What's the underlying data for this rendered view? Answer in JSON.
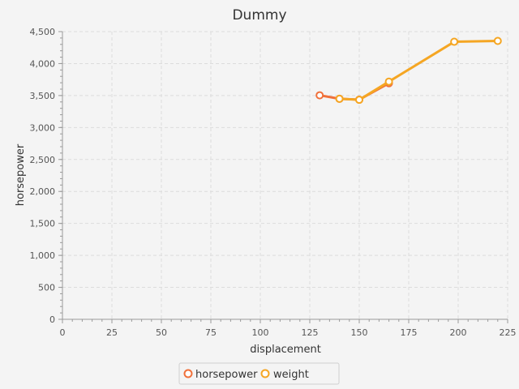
{
  "chart_data": {
    "type": "line",
    "title": "Dummy",
    "xlabel": "displacement",
    "ylabel": "horsepower",
    "xlim": [
      0,
      225
    ],
    "ylim": [
      0,
      4500
    ],
    "x_ticks": [
      0,
      25,
      50,
      75,
      100,
      125,
      150,
      175,
      200,
      225
    ],
    "y_ticks": [
      0,
      500,
      1000,
      1500,
      2000,
      2500,
      3000,
      3500,
      4000,
      4500
    ],
    "x_tick_labels": [
      "0",
      "25",
      "50",
      "75",
      "100",
      "125",
      "150",
      "175",
      "200",
      "225"
    ],
    "y_tick_labels": [
      "0",
      "500",
      "1,000",
      "1,500",
      "2,000",
      "2,500",
      "3,000",
      "3,500",
      "4,000",
      "4,500"
    ],
    "grid": true,
    "legend_position": "bottom-center",
    "series": [
      {
        "name": "horsepower",
        "color": "#f0703a",
        "points": [
          [
            130,
            3504
          ],
          [
            140,
            3449
          ],
          [
            150,
            3436
          ],
          [
            165,
            3693
          ]
        ]
      },
      {
        "name": "weight",
        "color": "#f5a623",
        "points": [
          [
            140,
            3449
          ],
          [
            150,
            3433
          ],
          [
            165,
            3718
          ],
          [
            198,
            4341
          ],
          [
            220,
            4354
          ]
        ]
      }
    ]
  }
}
